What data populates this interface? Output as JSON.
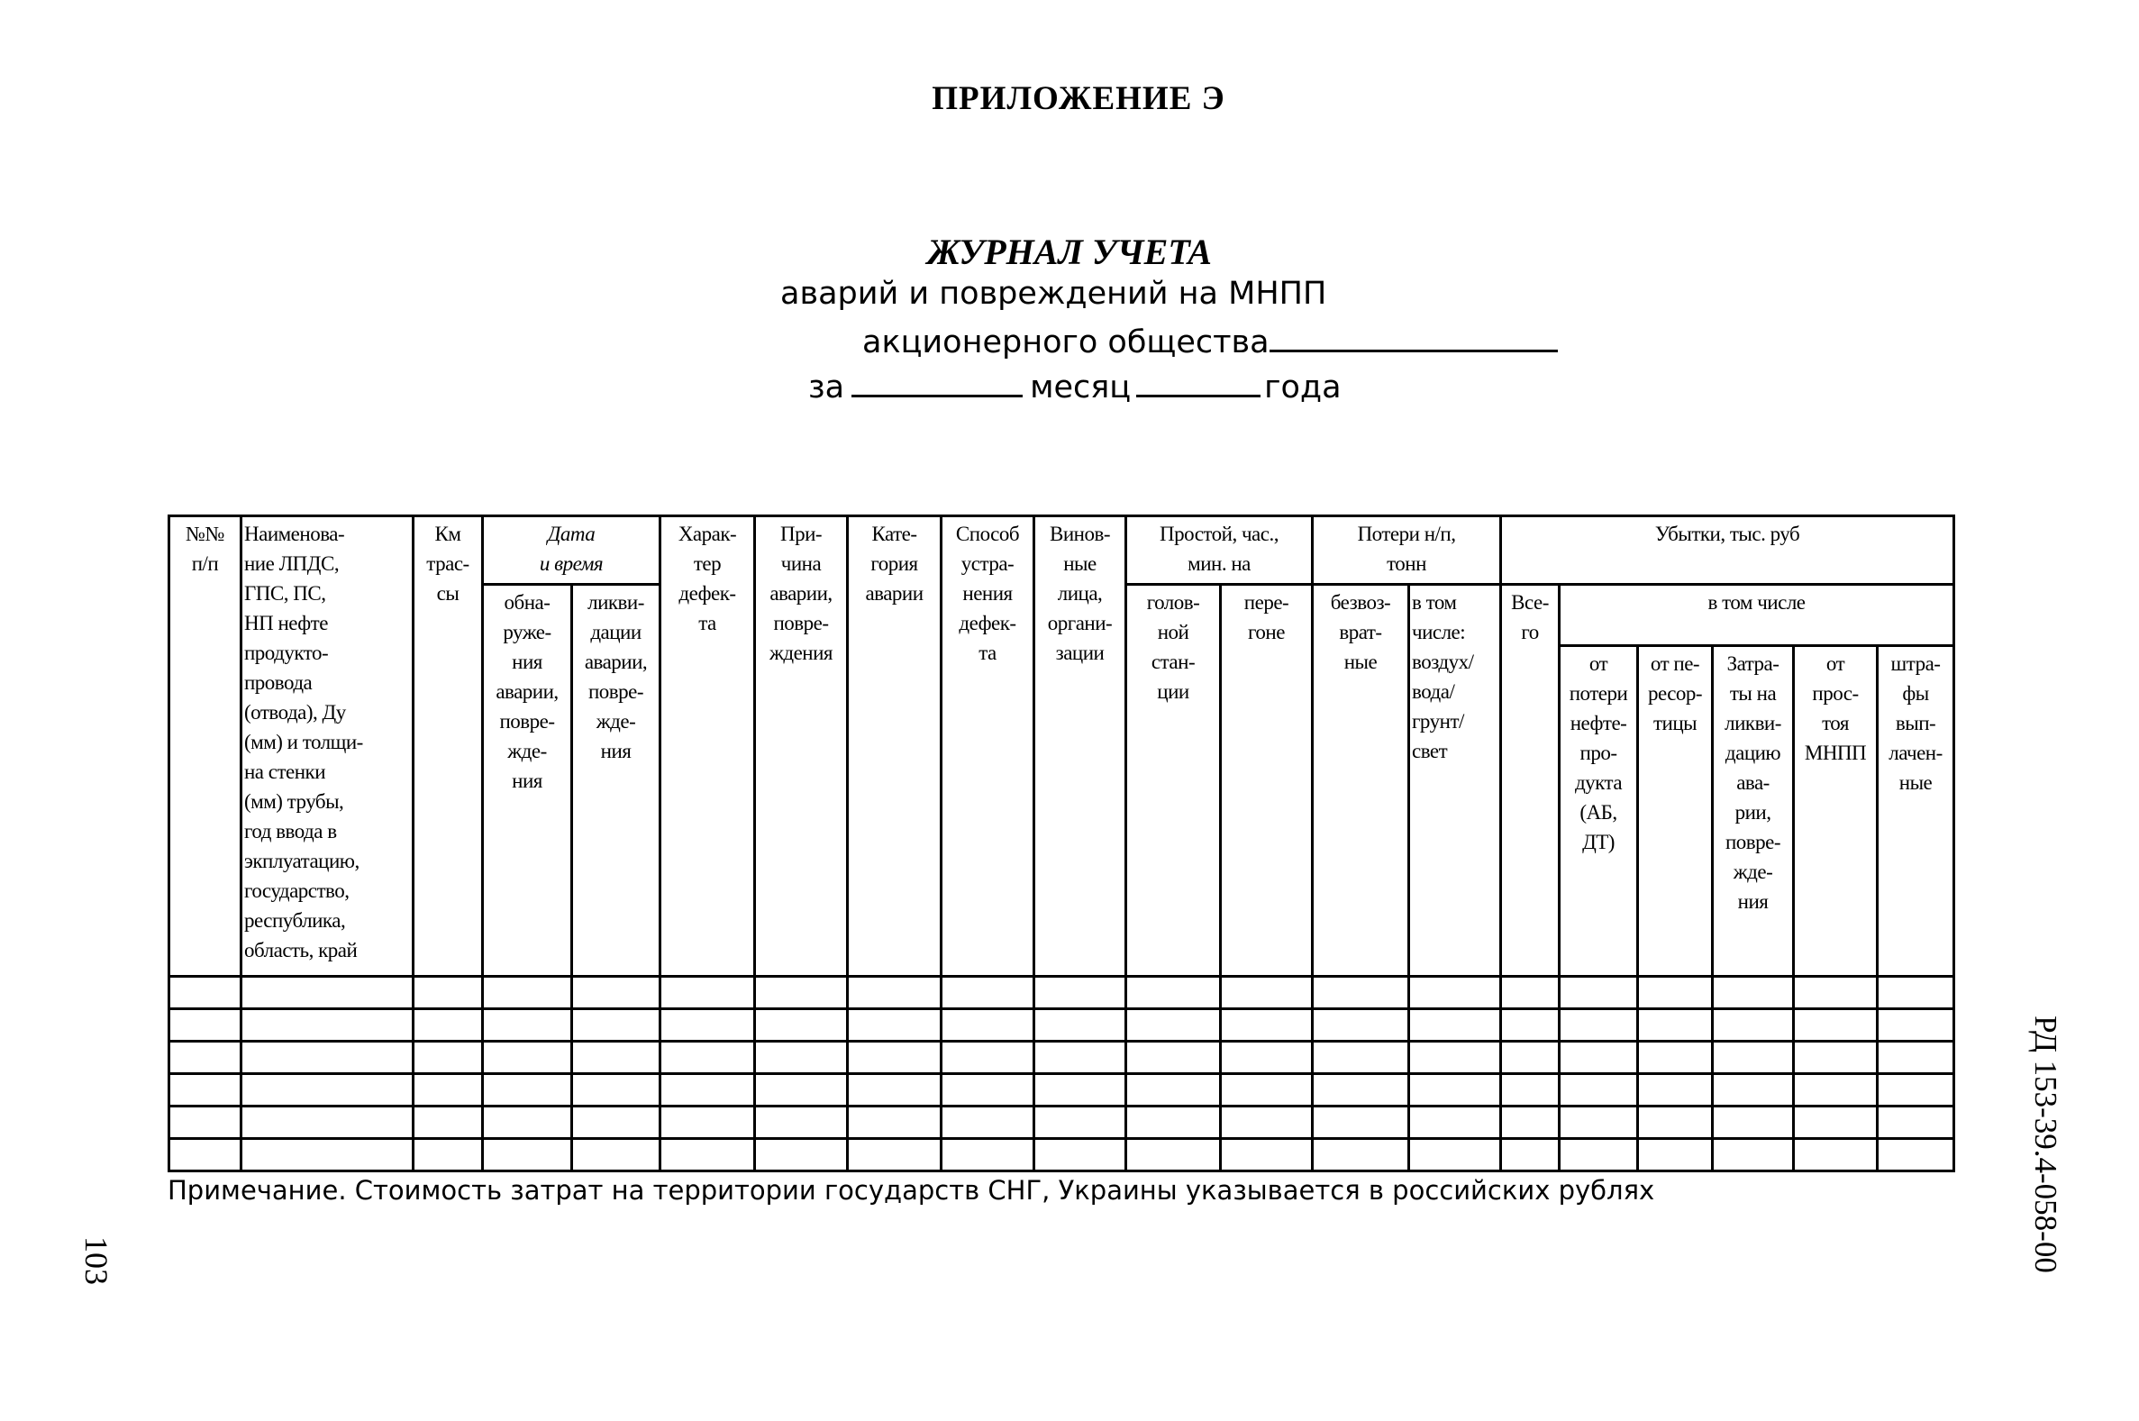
{
  "appendix_title": "ПРИЛОЖЕНИЕ Э",
  "journal_title": "ЖУРНАЛ УЧЕТА",
  "subtitle_line1": "аварий и повреждений на МНПП",
  "subtitle_line2": "акционерного общества",
  "subtitle_line3_za": "за",
  "subtitle_line3_month": "месяц",
  "subtitle_line3_year": "года",
  "table": {
    "headers": {
      "num": "№№\nп/п",
      "name": "Наименова-\nние ЛПДС,\nГПС, ПС,\nНП нефте\nпродукто-\nпровода\n(отвода), Ду\n(мм) и толщи-\nна стенки\n(мм) трубы,\nгод ввода в\nэкплуатацию,\nгосударство,\nреспублика,\nобласть, край",
      "km": "Км\nтрас-\nсы",
      "date_group": "Дата\nи время",
      "date_detect": "обна-\nруже-\nния\nаварии,\nповре-\nжде-\nния",
      "date_liquid": "ликви-\nдации\nаварии,\nповре-\nжде-\nния",
      "defect": "Харак-\nтер\nдефек-\nта",
      "cause": "При-\nчина\nаварии,\nповре-\nждения",
      "category": "Кате-\nгория\nаварии",
      "method": "Способ\nустра-\nнения\nдефек-\nта",
      "culprit": "Винов-\nные\nлица,\nоргани-\nзации",
      "downtime_group": "Простой, час.,\nмин. на",
      "downtime_head": "голов-\nной\nстан-\nции",
      "downtime_stretch": "пере-\nгоне",
      "loss_group": "Потери н/п,\nтонн",
      "loss_irrev": "безвоз-\nврат-\nные",
      "loss_incl": "в том\nчисле:\nвоздух/\nвода/\nгрунт/\nсвет",
      "damage_group": "Убытки, тыс. руб",
      "damage_total": "Все-\nго",
      "damage_incl": "в том числе",
      "damage_product": "от\nпотери\nнефте-\nпро-\nдукта\n(АБ,\nДТ)",
      "damage_regrade": "от пе-\nресор-\nтицы",
      "damage_liquid": "Затра-\nты на\nликви-\nдацию\nава-\nрии,\nповре-\nжде-\nния",
      "damage_downtime": "от\nпрос-\nтоя\nМНПП",
      "damage_fines": "штра-\nфы\nвып-\nлачен-\nные"
    }
  },
  "note": "Примечание. Стоимость затрат на территории государств СНГ, Украины указывается в российских рублях",
  "page_number": "103",
  "document_number": "РД 153-39.4-058-00"
}
